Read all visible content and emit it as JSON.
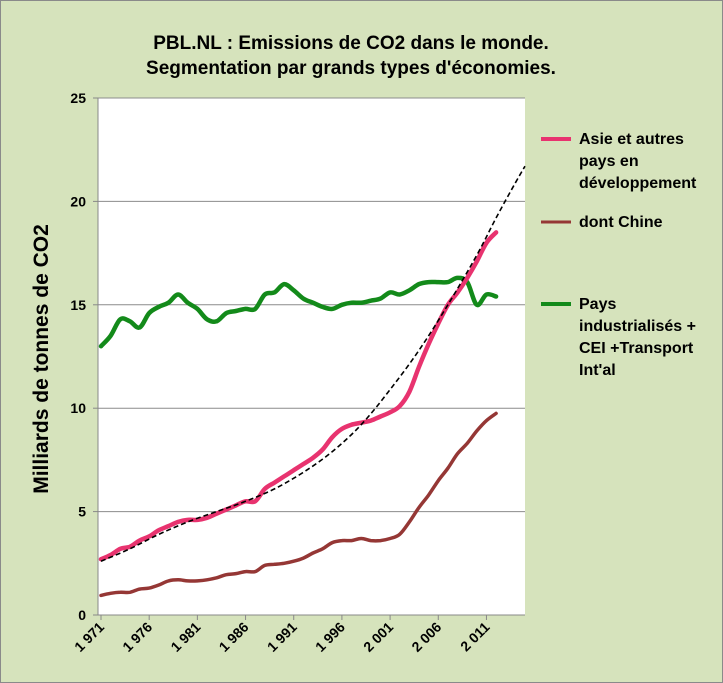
{
  "colors": {
    "background": "#d6e3bc",
    "grid": "#8c8c8c"
  },
  "chart_data": {
    "type": "line",
    "title": [
      "PBL.NL : Emissions de CO2 dans le monde.",
      "Segmentation par grands types d'économies."
    ],
    "ylabel": "Milliards de tonnes de CO2",
    "xlabel": "",
    "ylim": [
      0,
      25
    ],
    "xlim": [
      1971,
      2015
    ],
    "y_ticks": [
      0,
      5,
      10,
      15,
      20,
      25
    ],
    "x_ticks": [
      1971,
      1976,
      1981,
      1986,
      1991,
      1996,
      2001,
      2006,
      2011
    ],
    "x_tick_labels": [
      "1 971",
      "1 976",
      "1 981",
      "1 986",
      "1 991",
      "1 996",
      "2 001",
      "2 006",
      "2 011"
    ],
    "grid": "horizontal",
    "legend_position": "right",
    "series": [
      {
        "name": "Asie et autres pays en développement",
        "legend_lines": [
          "Asie et autres",
          "pays en",
          "développement"
        ],
        "color": "#e8336f",
        "stroke": "thick",
        "x": [
          1971,
          1972,
          1973,
          1974,
          1975,
          1976,
          1977,
          1978,
          1979,
          1980,
          1981,
          1982,
          1983,
          1984,
          1985,
          1986,
          1987,
          1988,
          1989,
          1990,
          1991,
          1992,
          1993,
          1994,
          1995,
          1996,
          1997,
          1998,
          1999,
          2000,
          2001,
          2002,
          2003,
          2004,
          2005,
          2006,
          2007,
          2008,
          2009,
          2010,
          2011,
          2012
        ],
        "values": [
          2.7,
          2.9,
          3.2,
          3.3,
          3.6,
          3.8,
          4.1,
          4.3,
          4.5,
          4.6,
          4.6,
          4.7,
          4.9,
          5.1,
          5.3,
          5.5,
          5.5,
          6.1,
          6.4,
          6.7,
          7.0,
          7.3,
          7.6,
          8.0,
          8.6,
          9.0,
          9.2,
          9.3,
          9.4,
          9.6,
          9.8,
          10.1,
          10.8,
          12.0,
          13.1,
          14.1,
          15.0,
          15.6,
          16.3,
          17.1,
          18.0,
          18.5
        ]
      },
      {
        "name": "dont Chine",
        "legend_lines": [
          "dont Chine"
        ],
        "color": "#953735",
        "stroke": "medium",
        "x": [
          1971,
          1972,
          1973,
          1974,
          1975,
          1976,
          1977,
          1978,
          1979,
          1980,
          1981,
          1982,
          1983,
          1984,
          1985,
          1986,
          1987,
          1988,
          1989,
          1990,
          1991,
          1992,
          1993,
          1994,
          1995,
          1996,
          1997,
          1998,
          1999,
          2000,
          2001,
          2002,
          2003,
          2004,
          2005,
          2006,
          2007,
          2008,
          2009,
          2010,
          2011,
          2012
        ],
        "values": [
          0.95,
          1.05,
          1.1,
          1.1,
          1.25,
          1.3,
          1.45,
          1.65,
          1.7,
          1.65,
          1.65,
          1.7,
          1.8,
          1.95,
          2.0,
          2.1,
          2.1,
          2.4,
          2.45,
          2.5,
          2.6,
          2.75,
          3.0,
          3.2,
          3.5,
          3.6,
          3.6,
          3.7,
          3.6,
          3.6,
          3.7,
          3.9,
          4.5,
          5.2,
          5.8,
          6.5,
          7.1,
          7.8,
          8.3,
          8.9,
          9.4,
          9.75
        ]
      },
      {
        "name": "Pays industrialisés + CEI + Transport Int'al",
        "legend_lines": [
          "Pays",
          "industrialisés +",
          "CEI +Transport",
          "Int'al"
        ],
        "color": "#138a1a",
        "stroke": "thick",
        "x": [
          1971,
          1972,
          1973,
          1974,
          1975,
          1976,
          1977,
          1978,
          1979,
          1980,
          1981,
          1982,
          1983,
          1984,
          1985,
          1986,
          1987,
          1988,
          1989,
          1990,
          1991,
          1992,
          1993,
          1994,
          1995,
          1996,
          1997,
          1998,
          1999,
          2000,
          2001,
          2002,
          2003,
          2004,
          2005,
          2006,
          2007,
          2008,
          2009,
          2010,
          2011,
          2012
        ],
        "values": [
          13.0,
          13.5,
          14.3,
          14.2,
          13.9,
          14.6,
          14.9,
          15.1,
          15.5,
          15.1,
          14.8,
          14.3,
          14.2,
          14.6,
          14.7,
          14.8,
          14.8,
          15.5,
          15.6,
          16.0,
          15.7,
          15.3,
          15.1,
          14.9,
          14.8,
          15.0,
          15.1,
          15.1,
          15.2,
          15.3,
          15.6,
          15.5,
          15.7,
          16.0,
          16.1,
          16.1,
          16.1,
          16.3,
          16.1,
          15.0,
          15.5,
          15.4
        ]
      }
    ],
    "trendline": {
      "color": "#000000",
      "style": "dashed",
      "x": [
        1971,
        1974,
        1977,
        1980,
        1983,
        1986,
        1989,
        1992,
        1995,
        1998,
        2001,
        2004,
        2007,
        2010,
        2012,
        2014,
        2015
      ],
      "values": [
        2.6,
        3.2,
        3.9,
        4.5,
        5.0,
        5.5,
        6.1,
        6.9,
        7.9,
        9.2,
        10.9,
        12.8,
        15.0,
        17.4,
        19.2,
        20.9,
        21.7
      ]
    }
  }
}
